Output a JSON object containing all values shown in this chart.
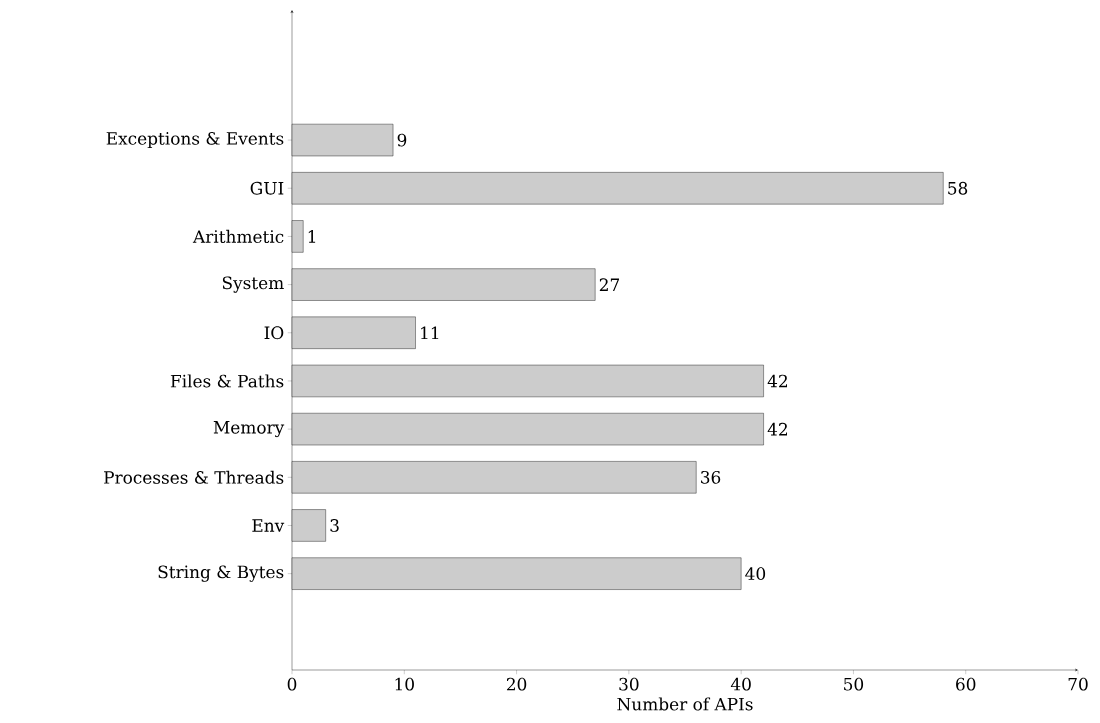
{
  "chart_data": {
    "type": "bar",
    "orientation": "horizontal",
    "xlabel": "Number of APIs",
    "categories": [
      "Exceptions & Events",
      "GUI",
      "Arithmetic",
      "System",
      "IO",
      "Files & Paths",
      "Memory",
      "Processes & Threads",
      "Env",
      "String & Bytes"
    ],
    "values": [
      9,
      58,
      1,
      27,
      11,
      42,
      42,
      36,
      3,
      40
    ],
    "color": "#cccccc",
    "data_labels": true,
    "grid": false,
    "xlim": [
      0,
      70
    ],
    "xticks": [
      0,
      10,
      20,
      30,
      40,
      50,
      60,
      70
    ]
  }
}
